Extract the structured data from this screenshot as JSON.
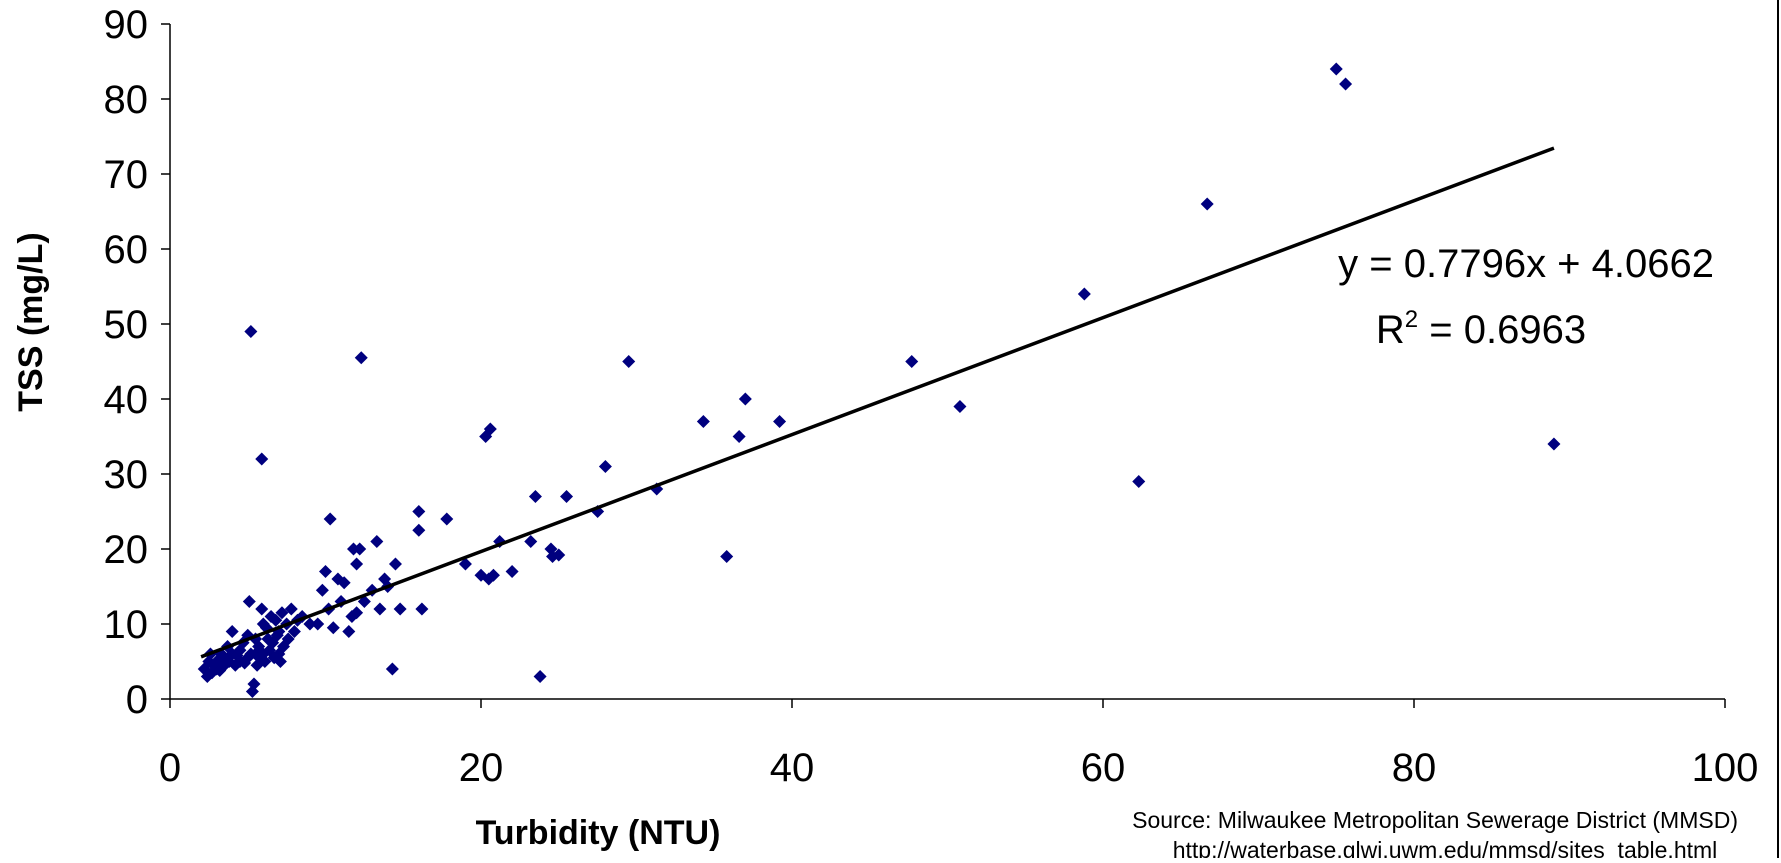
{
  "chart_data": {
    "type": "scatter",
    "xlabel": "Turbidity (NTU)",
    "ylabel": "TSS (mg/L)",
    "xlim": [
      0,
      100
    ],
    "ylim": [
      0,
      90
    ],
    "x_ticks": [
      "0",
      "20",
      "40",
      "60",
      "80",
      "100"
    ],
    "y_ticks": [
      "0",
      "10",
      "20",
      "30",
      "40",
      "50",
      "60",
      "70",
      "80",
      "90"
    ],
    "grid": false,
    "marker_color": "#00007f",
    "trendline": {
      "slope": 0.7796,
      "intercept": 4.0662,
      "x_range": [
        2,
        89
      ],
      "equation_label": "y = 0.7796x + 4.0662",
      "r2_prefix": "R",
      "r2_exp": "2",
      "r2_value": " = 0.6963"
    },
    "source_lines": [
      "Source:  Milwaukee Metropolitan Sewerage District (MMSD)",
      "http://waterbase.glwi.uwm.edu/mmsd/sites_table.html"
    ],
    "points": [
      [
        2.2,
        4
      ],
      [
        2.4,
        3
      ],
      [
        2.5,
        5
      ],
      [
        2.6,
        6
      ],
      [
        2.7,
        3.5
      ],
      [
        2.8,
        4.5
      ],
      [
        3,
        5
      ],
      [
        3,
        4
      ],
      [
        3.2,
        3.8
      ],
      [
        3.3,
        6
      ],
      [
        3.5,
        5.5
      ],
      [
        3.5,
        4.5
      ],
      [
        3.7,
        7
      ],
      [
        3.8,
        5
      ],
      [
        4,
        6
      ],
      [
        4,
        9
      ],
      [
        4.2,
        4.5
      ],
      [
        4.3,
        5.8
      ],
      [
        4.5,
        6.5
      ],
      [
        4.5,
        5
      ],
      [
        4.7,
        7.5
      ],
      [
        4.8,
        4.8
      ],
      [
        5,
        5.5
      ],
      [
        5,
        8.5
      ],
      [
        5.1,
        13
      ],
      [
        5.2,
        6
      ],
      [
        5.3,
        1
      ],
      [
        5.4,
        2
      ],
      [
        5.5,
        6
      ],
      [
        5.5,
        8
      ],
      [
        5.6,
        4.5
      ],
      [
        5.7,
        7
      ],
      [
        5.8,
        5.5
      ],
      [
        5.9,
        12
      ],
      [
        6,
        10
      ],
      [
        6,
        6
      ],
      [
        6.1,
        5
      ],
      [
        6.2,
        9.5
      ],
      [
        6.3,
        8
      ],
      [
        6.4,
        6.5
      ],
      [
        6.5,
        11
      ],
      [
        6.6,
        7.5
      ],
      [
        6.7,
        5.5
      ],
      [
        6.8,
        10.5
      ],
      [
        6.9,
        8.5
      ],
      [
        7,
        6
      ],
      [
        7,
        9
      ],
      [
        7.1,
        5
      ],
      [
        7.2,
        11.5
      ],
      [
        7.3,
        7
      ],
      [
        7.5,
        10
      ],
      [
        7.6,
        8
      ],
      [
        7.8,
        12
      ],
      [
        8,
        9
      ],
      [
        8.2,
        10.5
      ],
      [
        8.5,
        11
      ],
      [
        9,
        10
      ],
      [
        9.5,
        10
      ],
      [
        9.8,
        14.5
      ],
      [
        10,
        17
      ],
      [
        10.2,
        12
      ],
      [
        10.3,
        24
      ],
      [
        10.5,
        9.5
      ],
      [
        10.8,
        16
      ],
      [
        11,
        13
      ],
      [
        11.2,
        15.5
      ],
      [
        11.5,
        9
      ],
      [
        11.7,
        11
      ],
      [
        11.8,
        20
      ],
      [
        12,
        18
      ],
      [
        12,
        11.5
      ],
      [
        12.2,
        20
      ],
      [
        12.3,
        45.5
      ],
      [
        12.5,
        13
      ],
      [
        13,
        14.5
      ],
      [
        13.3,
        21
      ],
      [
        13.5,
        12
      ],
      [
        13.8,
        16
      ],
      [
        14,
        15
      ],
      [
        14.3,
        4
      ],
      [
        14.5,
        18
      ],
      [
        14.8,
        12
      ],
      [
        5.2,
        49
      ],
      [
        5.9,
        32
      ],
      [
        16,
        25
      ],
      [
        16,
        22.5
      ],
      [
        16.2,
        12
      ],
      [
        17.8,
        24
      ],
      [
        19,
        18
      ],
      [
        20,
        16.5
      ],
      [
        20.3,
        35
      ],
      [
        20.5,
        16
      ],
      [
        20.6,
        36
      ],
      [
        20.8,
        16.5
      ],
      [
        21.2,
        21
      ],
      [
        22,
        17
      ],
      [
        23.2,
        21
      ],
      [
        23.5,
        27
      ],
      [
        23.8,
        3
      ],
      [
        24.5,
        20
      ],
      [
        24.6,
        19
      ],
      [
        25,
        19.2
      ],
      [
        25.5,
        27
      ],
      [
        27.5,
        25
      ],
      [
        28,
        31
      ],
      [
        29.5,
        45
      ],
      [
        31.3,
        28
      ],
      [
        34.3,
        37
      ],
      [
        35.8,
        19
      ],
      [
        36.6,
        35
      ],
      [
        37,
        40
      ],
      [
        39.2,
        37
      ],
      [
        47.7,
        45
      ],
      [
        50.8,
        39
      ],
      [
        58.8,
        54
      ],
      [
        62.3,
        29
      ],
      [
        66.7,
        66
      ],
      [
        75,
        84
      ],
      [
        75.6,
        82
      ],
      [
        89,
        34
      ]
    ]
  }
}
